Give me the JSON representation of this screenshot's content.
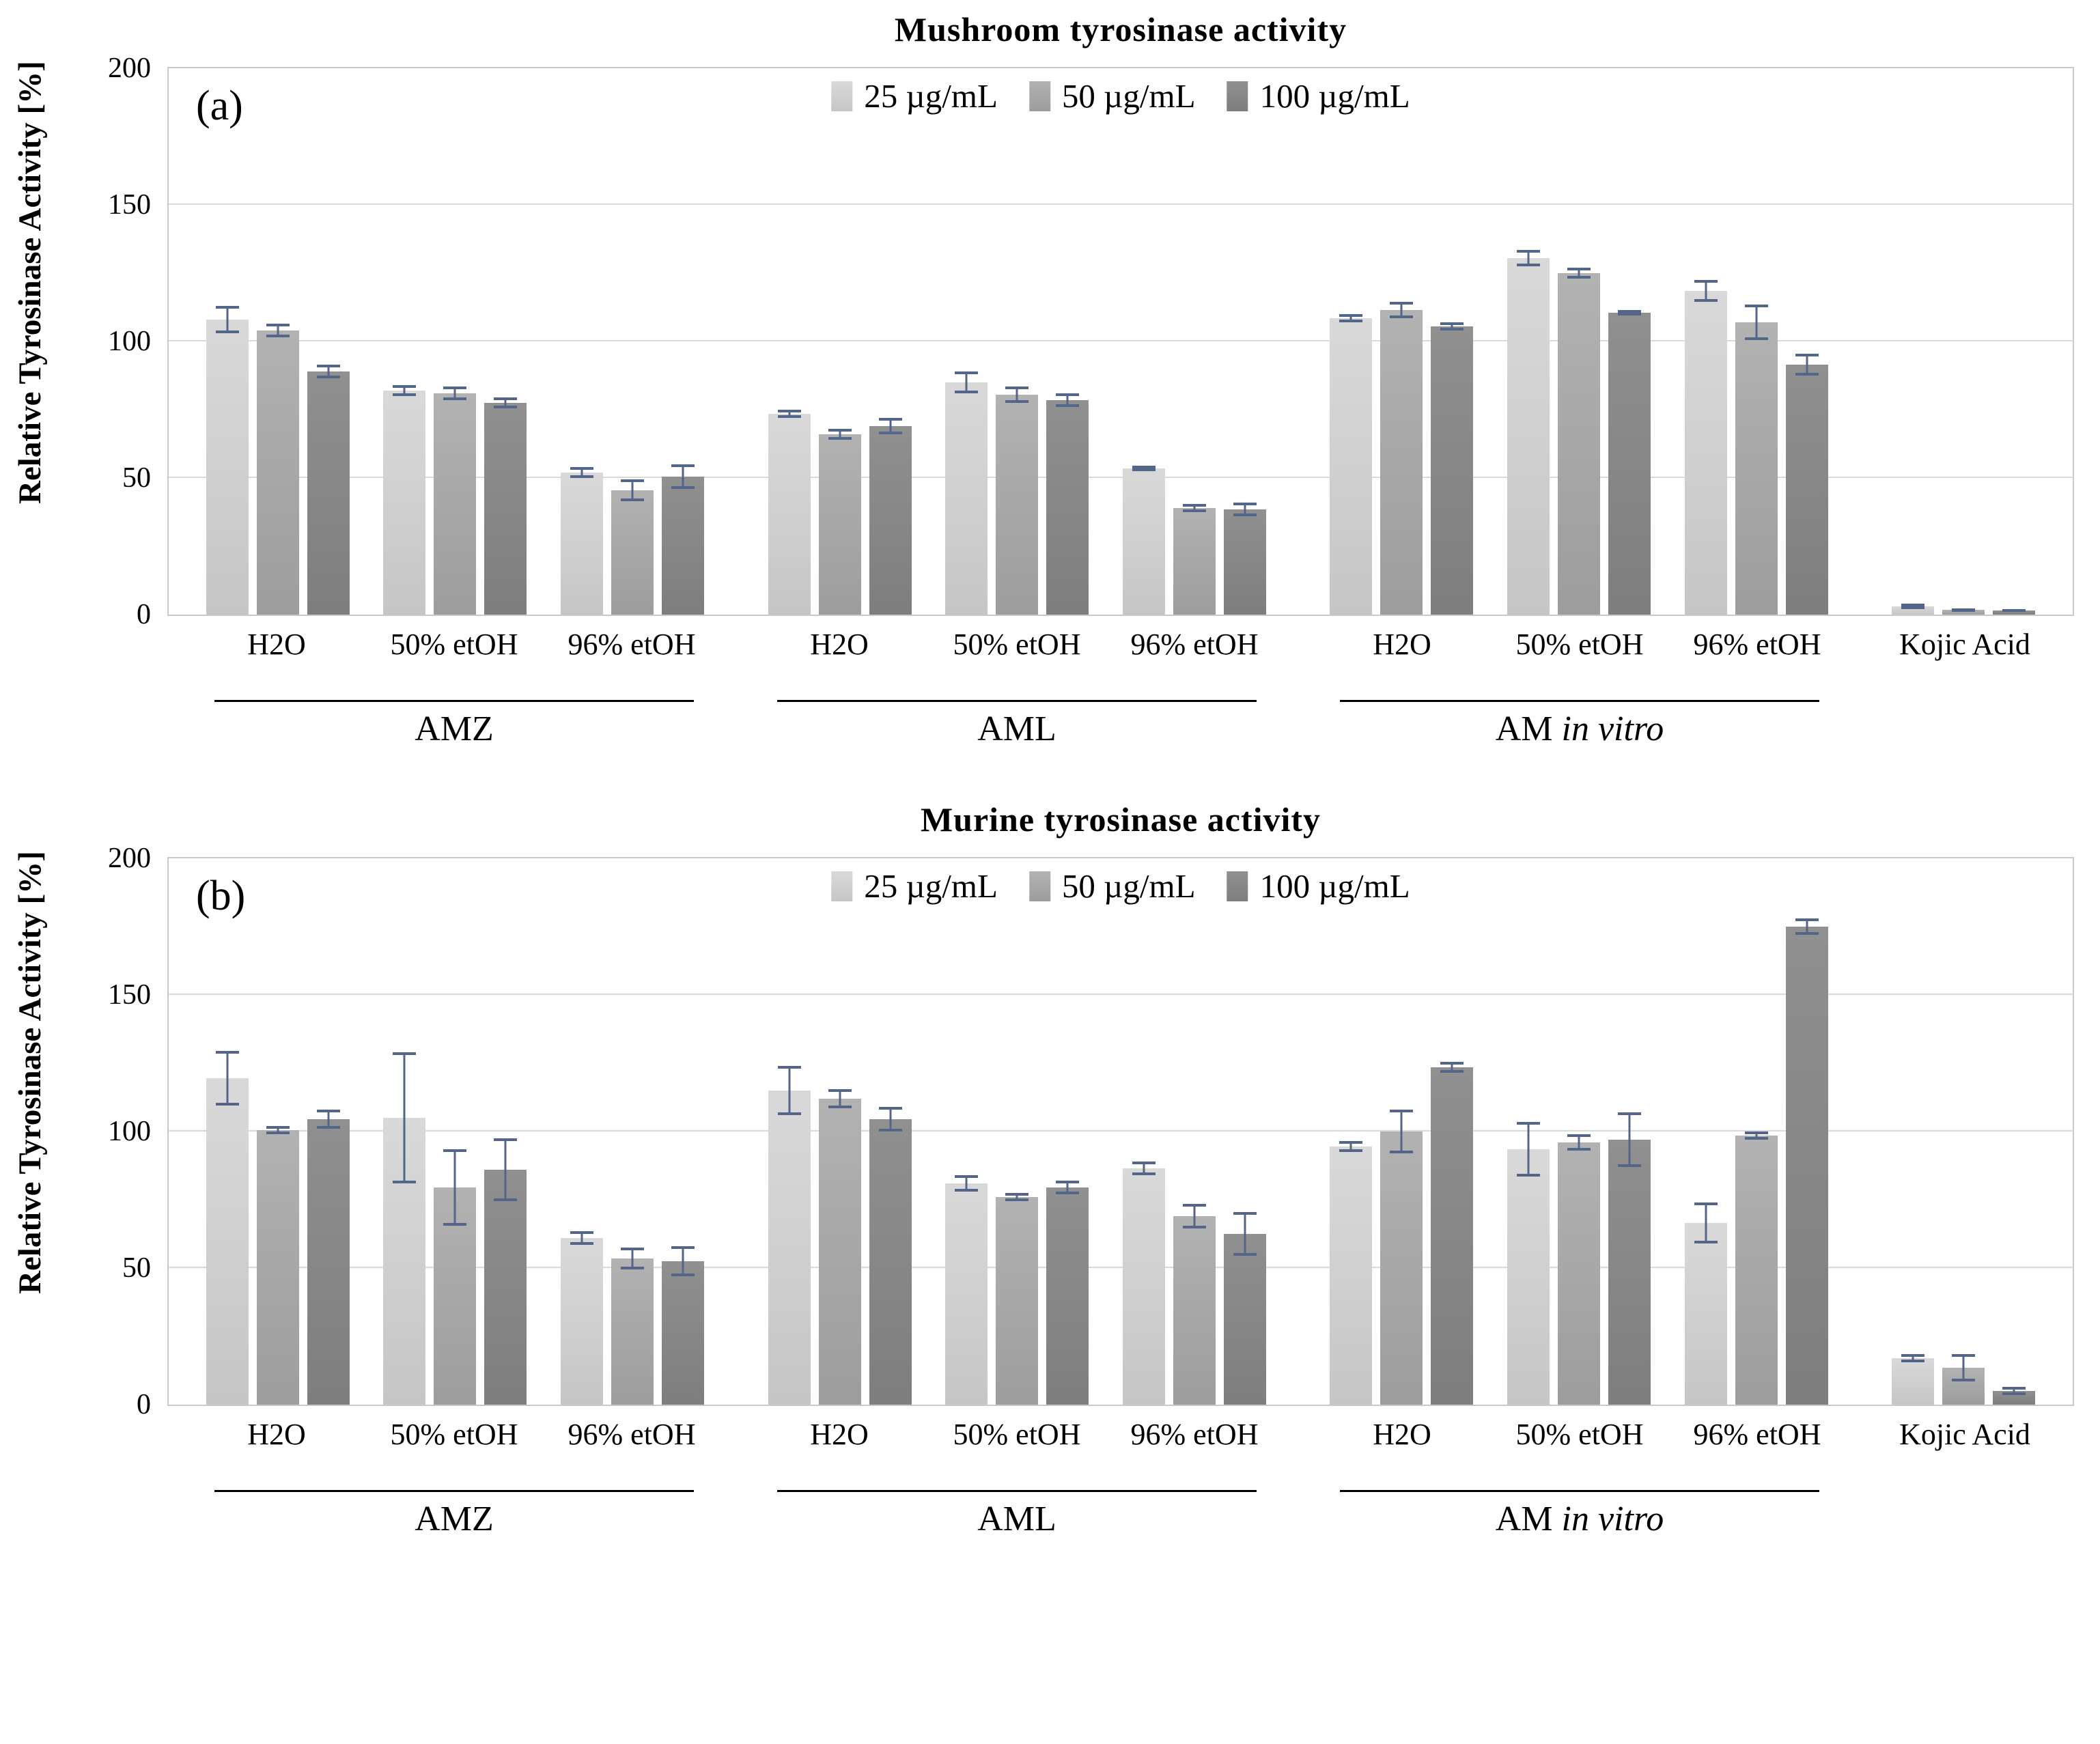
{
  "figure": {
    "series": [
      {
        "label": "25 µg/mL",
        "color_top": "#d9d9d9",
        "color_bottom": "#c6c6c6"
      },
      {
        "label": "50 µg/mL",
        "color_top": "#b2b2b2",
        "color_bottom": "#9d9d9d"
      },
      {
        "label": "100 µg/mL",
        "color_top": "#909090",
        "color_bottom": "#7e7e7e"
      }
    ],
    "error_bar_color": "#54658a",
    "gridline_color": "#dadada",
    "plot_border_color": "#c9c9c9"
  },
  "chart_data": [
    {
      "type": "bar",
      "panel": "(a)",
      "title": "Mushroom tyrosinase  activity",
      "ylabel": "Relative Tyrosinase Activity [%]",
      "ylim": [
        0,
        200
      ],
      "yticks": [
        0,
        50,
        100,
        150,
        200
      ],
      "grid": true,
      "legend_position": "top-center-inside",
      "series_names": [
        "25 µg/mL",
        "50 µg/mL",
        "100 µg/mL"
      ],
      "groups": [
        {
          "label": "AMZ",
          "label_italic": "",
          "categories": [
            {
              "label": "H2O",
              "values": [
                108,
                104,
                89
              ],
              "errors": [
                5,
                2.5,
                2.5
              ]
            },
            {
              "label": "50% etOH",
              "values": [
                82,
                81,
                77.5
              ],
              "errors": [
                2,
                2.5,
                2
              ]
            },
            {
              "label": "96% etOH",
              "values": [
                52,
                45.5,
                50.5
              ],
              "errors": [
                2,
                4,
                4.5
              ]
            }
          ]
        },
        {
          "label": "AML",
          "label_italic": "",
          "categories": [
            {
              "label": "H2O",
              "values": [
                73.5,
                66,
                69
              ],
              "errors": [
                1.5,
                2,
                3
              ]
            },
            {
              "label": "50% etOH",
              "values": [
                85,
                80.5,
                78.5
              ],
              "errors": [
                4,
                3,
                2.5
              ]
            },
            {
              "label": "96% etOH",
              "values": [
                53.5,
                39,
                38.5
              ],
              "errors": [
                1,
                1.5,
                2.5
              ]
            }
          ]
        },
        {
          "label": "AM",
          "label_italic": "in vitro",
          "categories": [
            {
              "label": "H2O",
              "values": [
                108.5,
                111.5,
                105.5
              ],
              "errors": [
                1.5,
                3,
                1.5
              ]
            },
            {
              "label": "50% etOH",
              "values": [
                130.5,
                125,
                110.5
              ],
              "errors": [
                3,
                2,
                1
              ]
            },
            {
              "label": "96% etOH",
              "values": [
                118.5,
                107,
                91.5
              ],
              "errors": [
                4,
                6.5,
                4
              ]
            }
          ]
        },
        {
          "label": "",
          "label_italic": "",
          "categories": [
            {
              "label": "Kojic Acid",
              "values": [
                3,
                1.7,
                1.5
              ],
              "errors": [
                1,
                0.6,
                0.5
              ]
            }
          ]
        }
      ]
    },
    {
      "type": "bar",
      "panel": "(b)",
      "title": "Murine tyrosinase activity",
      "ylabel": "Relative Tyrosinase Activity [%]",
      "ylim": [
        0,
        200
      ],
      "yticks": [
        0,
        50,
        100,
        150,
        200
      ],
      "grid": true,
      "legend_position": "top-center-inside",
      "series_names": [
        "25 µg/mL",
        "50 µg/mL",
        "100 µg/mL"
      ],
      "groups": [
        {
          "label": "AMZ",
          "label_italic": "",
          "categories": [
            {
              "label": "H2O",
              "values": [
                119.5,
                100.5,
                104.5
              ],
              "errors": [
                10,
                1.5,
                3.5
              ]
            },
            {
              "label": "50% etOH",
              "values": [
                105,
                79.5,
                86
              ],
              "errors": [
                24,
                14,
                11.5
              ]
            },
            {
              "label": "96% etOH",
              "values": [
                61,
                53.5,
                52.5
              ],
              "errors": [
                2.5,
                4,
                5.5
              ]
            }
          ]
        },
        {
          "label": "AML",
          "label_italic": "",
          "categories": [
            {
              "label": "H2O",
              "values": [
                115,
                112,
                104.5
              ],
              "errors": [
                9,
                3.5,
                4.5
              ]
            },
            {
              "label": "50% etOH",
              "values": [
                81,
                76,
                79.5
              ],
              "errors": [
                3,
                1.5,
                2.5
              ]
            },
            {
              "label": "96% etOH",
              "values": [
                86.5,
                69,
                62.5
              ],
              "errors": [
                2.5,
                4.5,
                8
              ]
            }
          ]
        },
        {
          "label": "AM",
          "label_italic": "in vitro",
          "categories": [
            {
              "label": "H2O",
              "values": [
                94.5,
                100,
                123.5
              ],
              "errors": [
                2,
                8,
                2
              ]
            },
            {
              "label": "50% etOH",
              "values": [
                93.5,
                96,
                97
              ],
              "errors": [
                10,
                3,
                10
              ]
            },
            {
              "label": "96% etOH",
              "values": [
                66.5,
                98.5,
                175
              ],
              "errors": [
                7.5,
                1.5,
                3
              ]
            }
          ]
        },
        {
          "label": "",
          "label_italic": "",
          "categories": [
            {
              "label": "Kojic Acid",
              "values": [
                17,
                13.5,
                5
              ],
              "errors": [
                1.5,
                5,
                1.5
              ]
            }
          ]
        }
      ]
    }
  ]
}
